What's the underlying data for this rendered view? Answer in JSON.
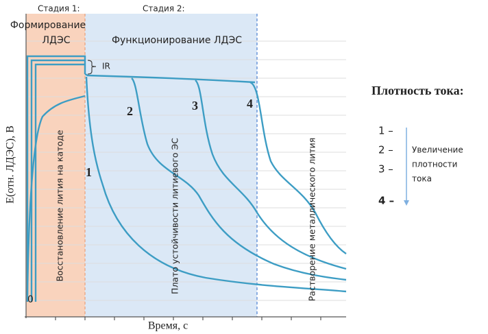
{
  "diagram": {
    "stage1": "Стадия 1:",
    "stage2": "Стадия 2:",
    "formation": [
      "Формирование",
      "ЛДЭС"
    ],
    "operation": "Функционирование ЛДЭС",
    "ir": "IR",
    "y_label": "E(отн. ЛДЭС), В",
    "x_label": "Время, с",
    "origin": "0",
    "curve_labels": [
      "1",
      "2",
      "3",
      "4"
    ],
    "region_texts": [
      "Восстановление лития на катоде",
      "Плато устойчивости литиевого ЭС",
      "Растворение металлического лития"
    ],
    "legend": {
      "title": "Плотность тока:",
      "items": [
        "1 –",
        "2 –",
        "3 –",
        "4 –"
      ],
      "note": [
        "Увеличение",
        "плотности",
        "тока"
      ]
    }
  }
}
